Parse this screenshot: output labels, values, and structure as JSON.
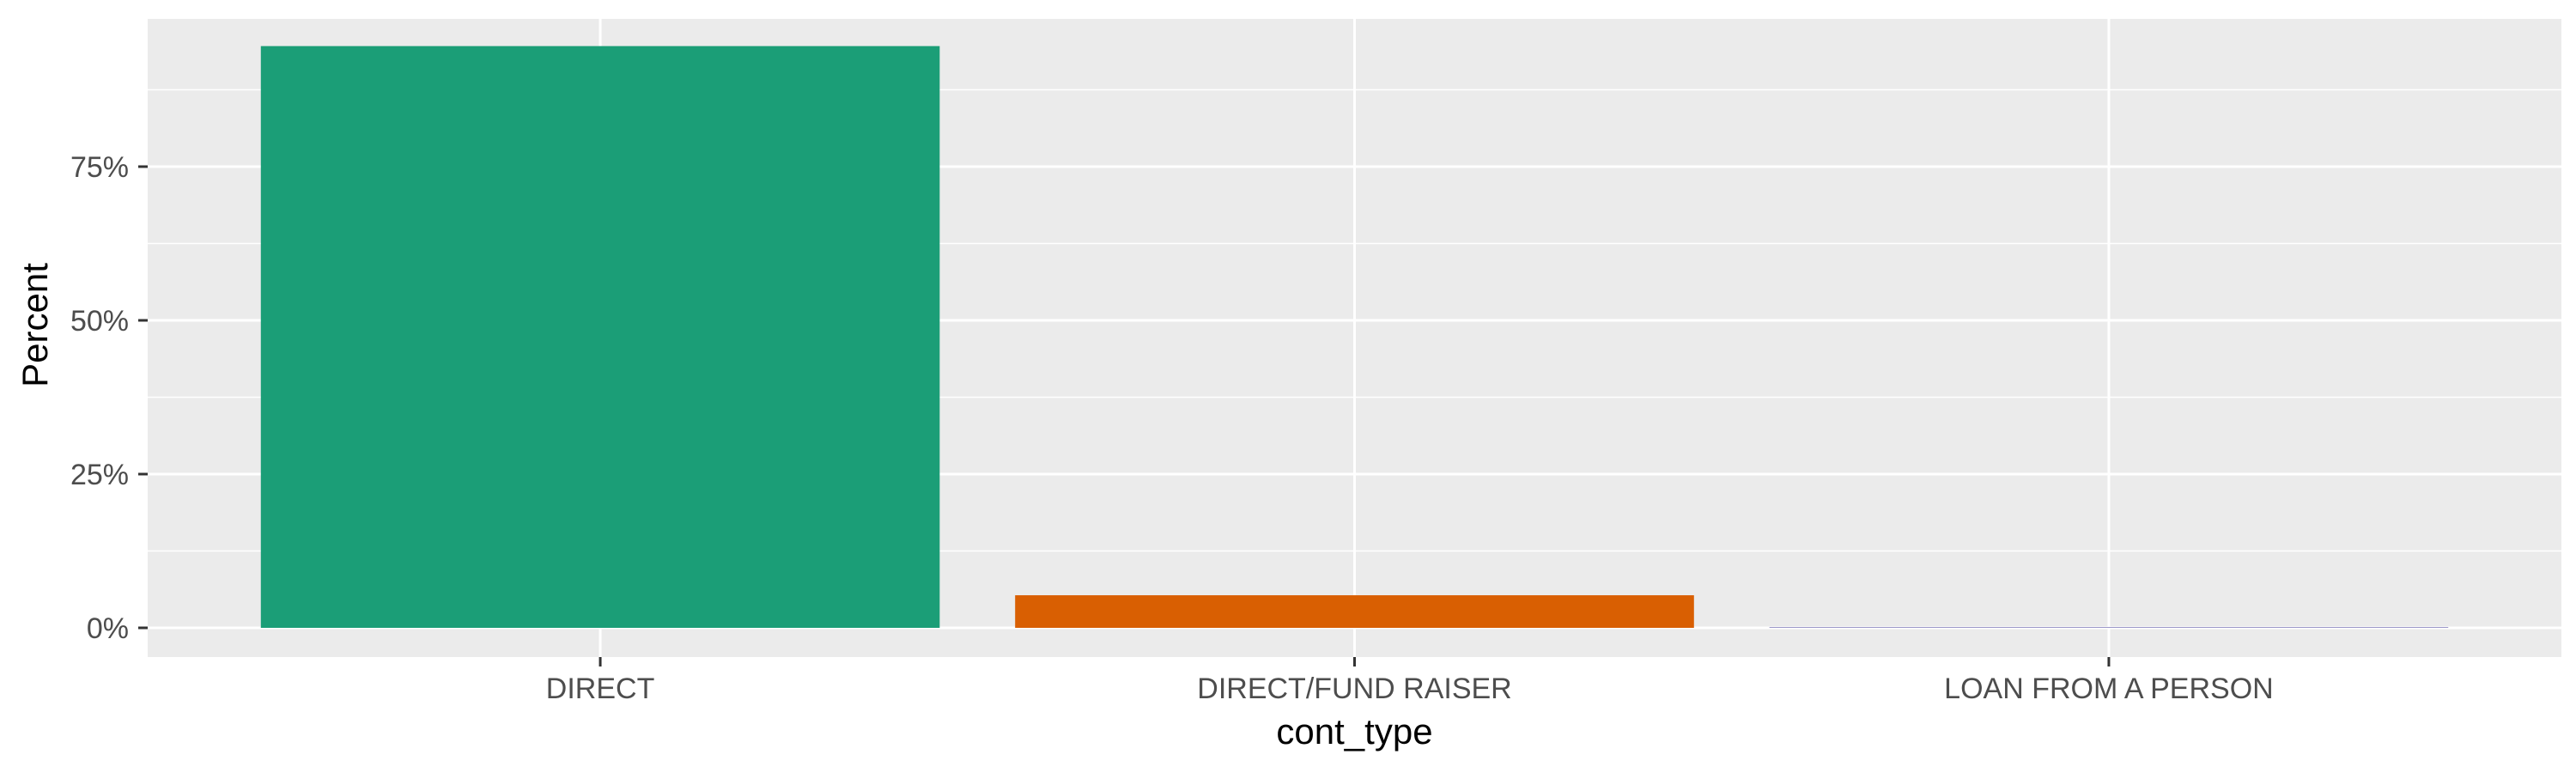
{
  "chart_data": {
    "type": "bar",
    "title": "",
    "xlabel": "cont_type",
    "ylabel": "Percent",
    "categories": [
      "DIRECT",
      "DIRECT/FUND RAISER",
      "LOAN FROM A PERSON"
    ],
    "values": [
      94.6,
      5.3,
      0.1
    ],
    "ylim": [
      0,
      100
    ],
    "y_ticks": [
      0,
      25,
      50,
      75
    ],
    "y_tick_labels": [
      "0%",
      "25%",
      "50%",
      "75%"
    ],
    "bar_colors": [
      "#1B9E77",
      "#D95F02",
      "#7570B3"
    ],
    "grid": true,
    "legend": "none",
    "panel_background": "#EBEBEB",
    "grid_color": "#FFFFFF"
  }
}
